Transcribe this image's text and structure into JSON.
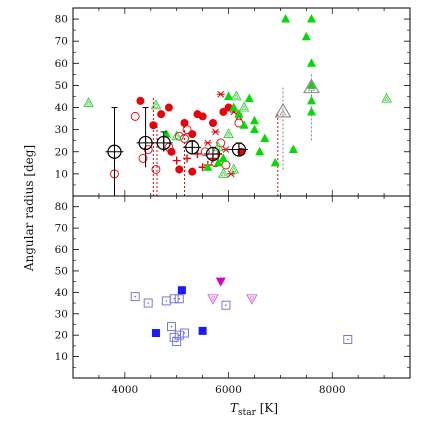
{
  "figure": {
    "ylabel": "Angular radius [deg]",
    "xlabel_main": "T",
    "xlabel_sub": "star",
    "xlabel_unit": " [K]"
  },
  "colors": {
    "red": "#e8000b",
    "green": "#00dc00",
    "light_green": "#33cc33",
    "black": "#000000",
    "gray": "#888888",
    "blue": "#1a1aff",
    "light_blue": "#6a6adf",
    "magenta": "#d400d4",
    "light_magenta": "#d860d8"
  },
  "chart_data": [
    {
      "type": "scatter",
      "panel": "top",
      "xlim": [
        3000,
        9500
      ],
      "ylim": [
        0,
        85
      ],
      "yticks": [
        10,
        20,
        30,
        40,
        50,
        60,
        70,
        80
      ],
      "ytick_labels": [
        "10",
        "20",
        "30",
        "40",
        "50",
        "60",
        "70",
        "80"
      ],
      "grid": false,
      "series": [
        {
          "marker": "filled-circle",
          "color": "red",
          "points": [
            [
              4300,
              43
            ],
            [
              4550,
              32
            ],
            [
              4700,
              37
            ],
            [
              4850,
              40
            ],
            [
              5150,
              33
            ],
            [
              5300,
              28
            ],
            [
              5400,
              37
            ],
            [
              5500,
              36
            ],
            [
              5700,
              33
            ],
            [
              5900,
              38
            ],
            [
              6000,
              40
            ],
            [
              6250,
              20
            ],
            [
              5050,
              12
            ],
            [
              5300,
              11
            ],
            [
              4900,
              20
            ]
          ]
        },
        {
          "marker": "open-circle",
          "color": "red",
          "points": [
            [
              3800,
              10
            ],
            [
              4350,
              17
            ],
            [
              4600,
              12
            ],
            [
              4450,
              21
            ],
            [
              4850,
              22
            ],
            [
              5050,
              27
            ],
            [
              5150,
              26
            ],
            [
              5200,
              30
            ],
            [
              5550,
              20
            ],
            [
              5750,
              15
            ],
            [
              5850,
              24
            ],
            [
              5950,
              14
            ],
            [
              6200,
              33
            ],
            [
              4200,
              36
            ]
          ]
        },
        {
          "marker": "plus",
          "color": "red",
          "points": [
            [
              5000,
              16
            ],
            [
              5200,
              17
            ],
            [
              5400,
              19
            ],
            [
              5500,
              13
            ],
            [
              5600,
              14
            ],
            [
              5700,
              17
            ],
            [
              5800,
              19
            ]
          ]
        },
        {
          "marker": "asterisk",
          "color": "red",
          "points": [
            [
              5600,
              24
            ],
            [
              5750,
              29
            ],
            [
              5850,
              46
            ],
            [
              5950,
              21
            ],
            [
              6050,
              10
            ],
            [
              6200,
              36
            ],
            [
              6100,
              38
            ]
          ]
        },
        {
          "marker": "filled-triangle",
          "color": "green",
          "points": [
            [
              4800,
              28
            ],
            [
              5600,
              13
            ],
            [
              5800,
              15
            ],
            [
              5900,
              17
            ],
            [
              6000,
              45
            ],
            [
              6100,
              40
            ],
            [
              6200,
              37
            ],
            [
              6300,
              32
            ],
            [
              6500,
              34
            ],
            [
              6400,
              44
            ],
            [
              6500,
              30
            ],
            [
              6600,
              20
            ],
            [
              6700,
              26
            ],
            [
              7100,
              80
            ],
            [
              7500,
              72
            ],
            [
              7600,
              43
            ],
            [
              7600,
              38
            ],
            [
              7600,
              50
            ],
            [
              7600,
              60
            ],
            [
              7600,
              80
            ],
            [
              7250,
              21
            ],
            [
              6900,
              15
            ]
          ]
        },
        {
          "marker": "open-triangle",
          "color": "light_green",
          "points": [
            [
              3300,
              42
            ],
            [
              4600,
              41
            ],
            [
              5000,
              27
            ],
            [
              5800,
              22
            ],
            [
              6000,
              28
            ],
            [
              6100,
              12
            ],
            [
              6150,
              45
            ],
            [
              6300,
              40
            ],
            [
              5900,
              10
            ],
            [
              9050,
              44
            ]
          ]
        },
        {
          "marker": "big-open-circle-cross",
          "color": "black",
          "points": [
            [
              3800,
              20,
              40,
              0
            ],
            [
              4400,
              24,
              40,
              13
            ],
            [
              4750,
              24,
              29,
              20
            ],
            [
              5300,
              22,
              25,
              19
            ],
            [
              5700,
              19,
              22,
              16
            ],
            [
              6200,
              21,
              24,
              18
            ]
          ]
        },
        {
          "marker": "big-open-triangle",
          "color": "gray",
          "points": [
            [
              7050,
              38,
              49,
              11
            ],
            [
              7600,
              49,
              55,
              25
            ]
          ]
        }
      ],
      "vlines": [
        [
          4550,
          0,
          45
        ],
        [
          4620,
          0,
          33
        ],
        [
          5150,
          0,
          33
        ],
        [
          6950,
          0,
          38
        ]
      ]
    },
    {
      "type": "scatter",
      "panel": "bottom",
      "xlim": [
        3000,
        9500
      ],
      "ylim": [
        0,
        85
      ],
      "xticks": [
        4000,
        6000,
        8000
      ],
      "xtick_labels": [
        "4000",
        "6000",
        "8000"
      ],
      "yticks": [
        10,
        20,
        30,
        40,
        50,
        60,
        70,
        80
      ],
      "ytick_labels": [
        "10",
        "20",
        "30",
        "40",
        "50",
        "60",
        "70",
        "80"
      ],
      "grid": false,
      "series": [
        {
          "marker": "filled-square",
          "color": "blue",
          "points": [
            [
              5100,
              41
            ],
            [
              4600,
              21
            ],
            [
              5500,
              22
            ]
          ]
        },
        {
          "marker": "open-square",
          "color": "light_blue",
          "points": [
            [
              4200,
              38
            ],
            [
              4450,
              35
            ],
            [
              4800,
              36
            ],
            [
              4950,
              37
            ],
            [
              5050,
              37
            ],
            [
              5150,
              21
            ],
            [
              5050,
              20
            ],
            [
              4950,
              19
            ],
            [
              5000,
              17
            ],
            [
              4900,
              24
            ],
            [
              5950,
              34
            ],
            [
              8300,
              18
            ]
          ]
        },
        {
          "marker": "filled-inverted-triangle",
          "color": "magenta",
          "points": [
            [
              5850,
              45
            ]
          ]
        },
        {
          "marker": "open-inverted-triangle",
          "color": "light_magenta",
          "points": [
            [
              5700,
              37
            ],
            [
              6450,
              37
            ]
          ]
        }
      ]
    }
  ]
}
